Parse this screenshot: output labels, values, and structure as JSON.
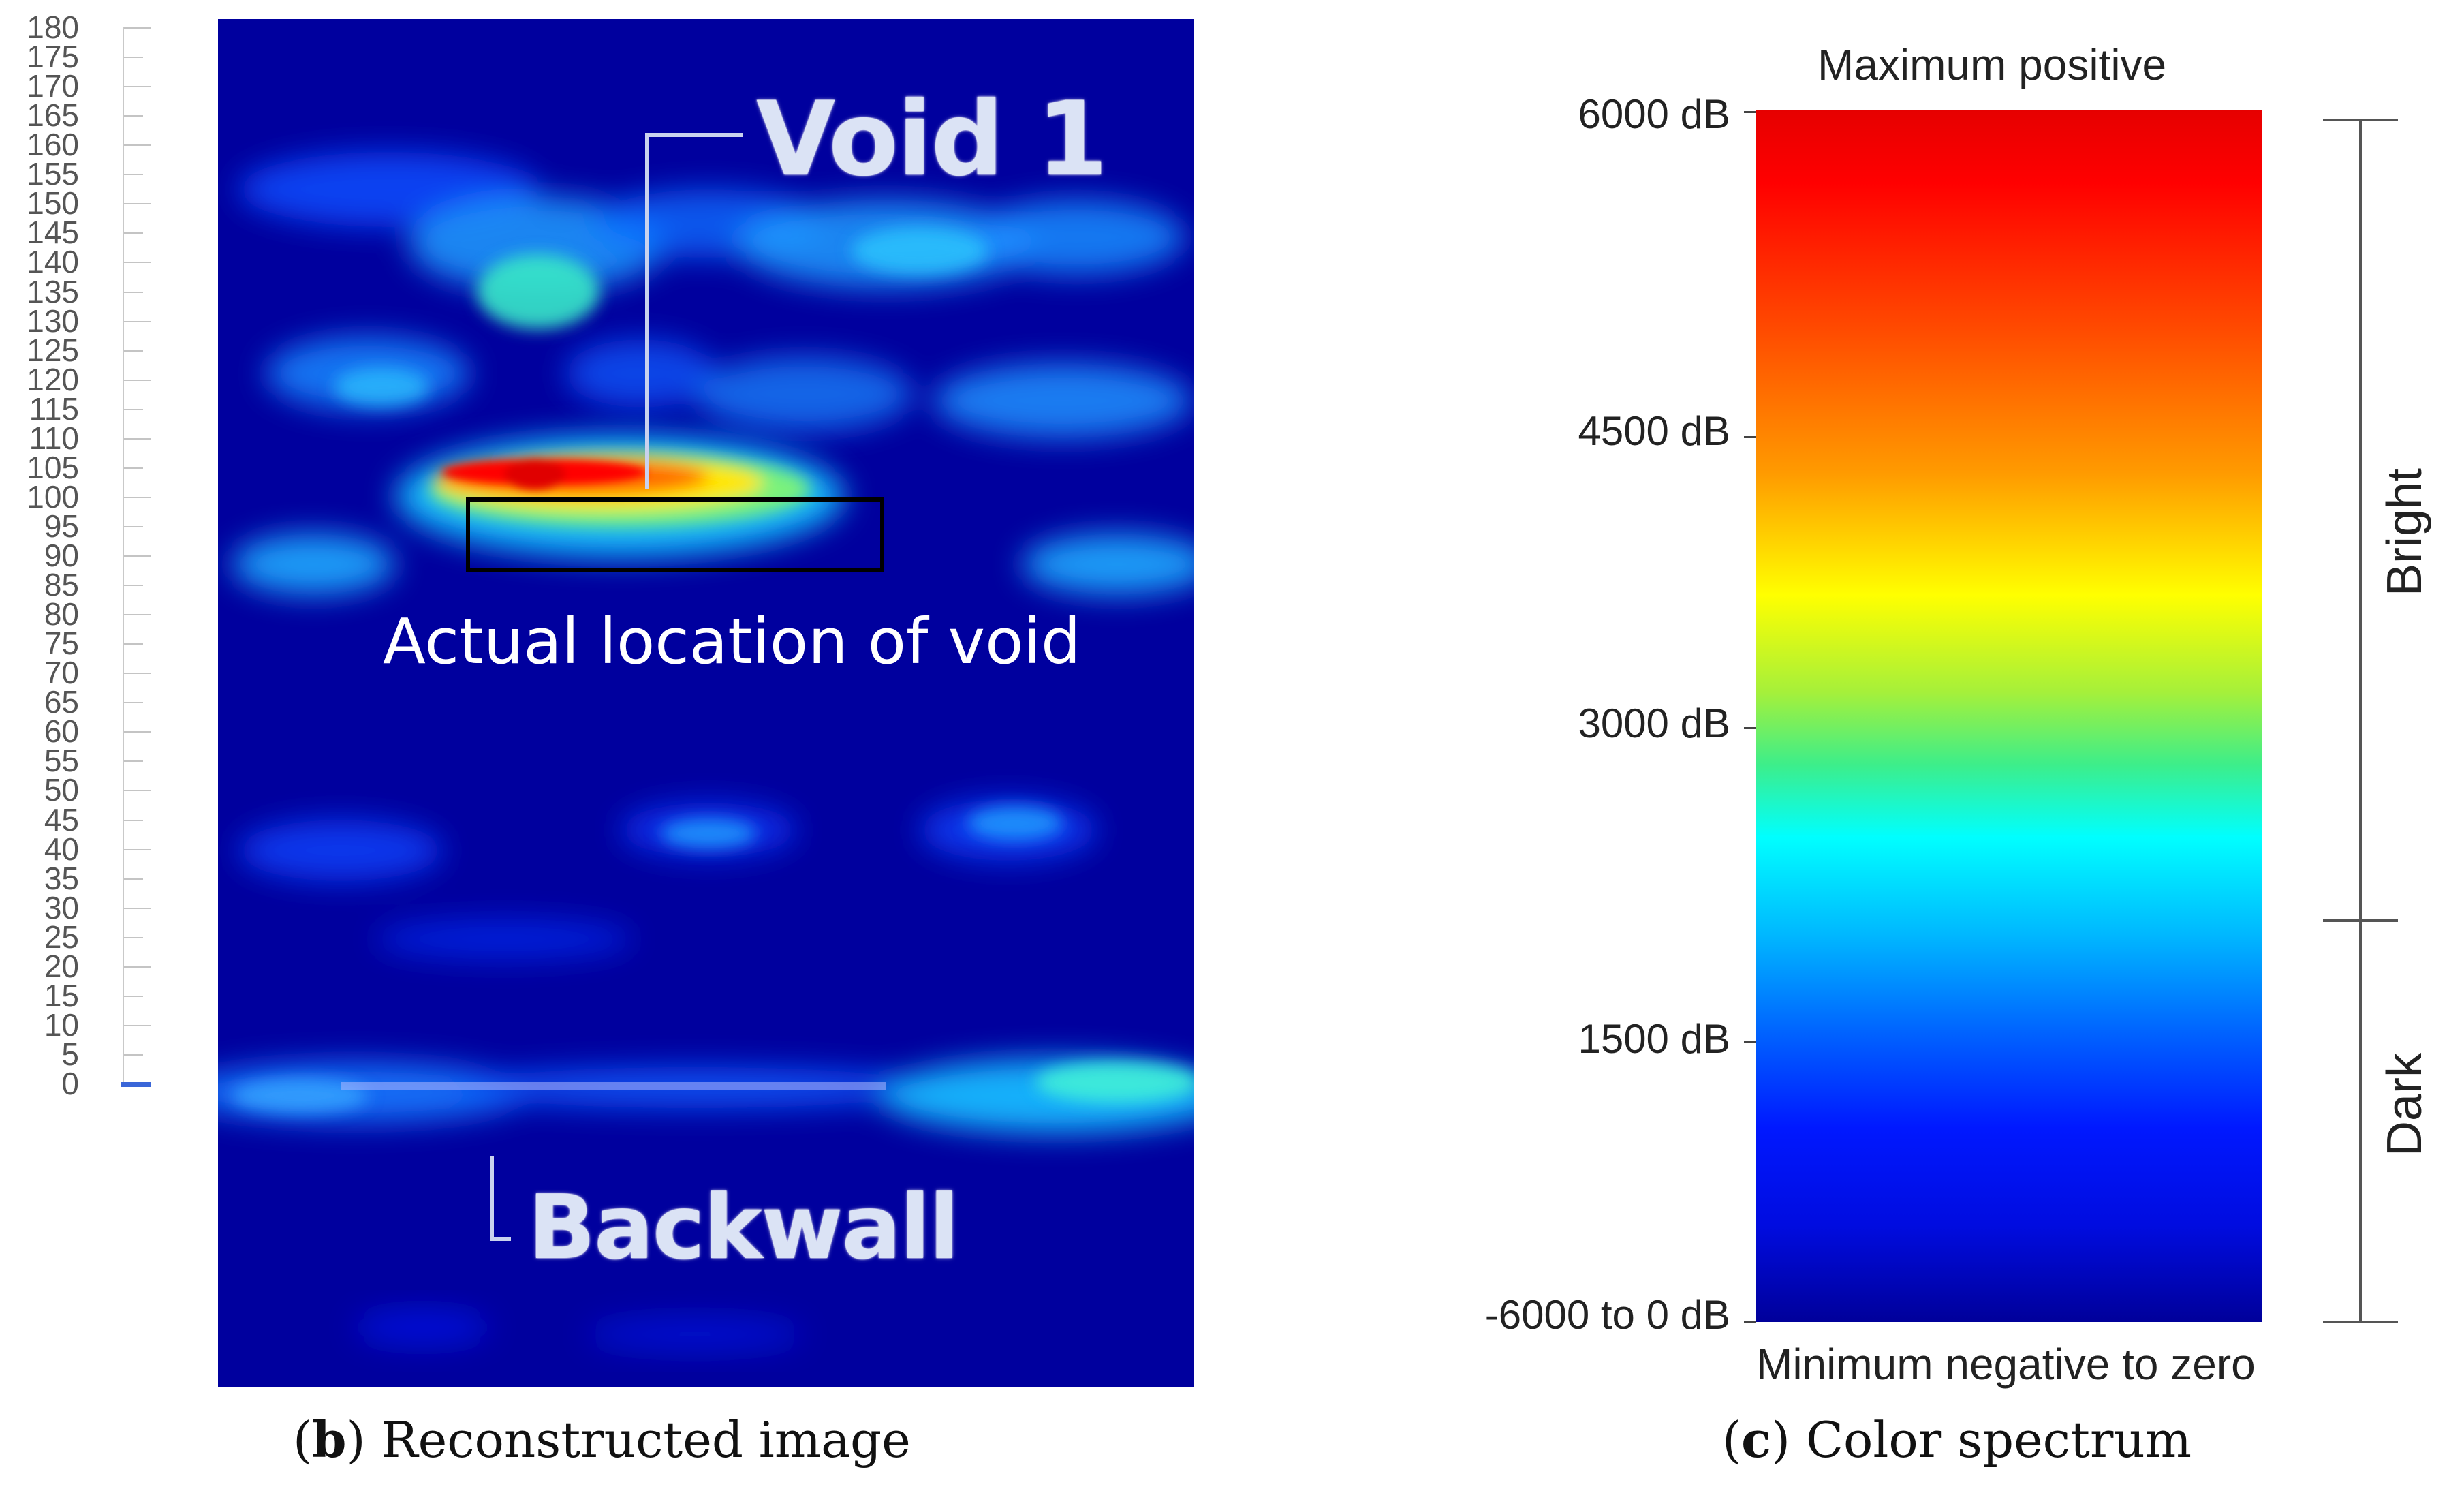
{
  "panel_b": {
    "ruler_ticks": [
      "180",
      "175",
      "170",
      "165",
      "160",
      "155",
      "150",
      "145",
      "140",
      "135",
      "130",
      "125",
      "120",
      "115",
      "110",
      "105",
      "100",
      "95",
      "90",
      "85",
      "80",
      "75",
      "70",
      "65",
      "60",
      "55",
      "50",
      "45",
      "40",
      "35",
      "30",
      "25",
      "20",
      "15",
      "10",
      "5",
      "0"
    ],
    "void_label": "Void 1",
    "actual_location_label": "Actual location of void",
    "backwall_label": "Backwall",
    "caption_letter": "b",
    "caption_text": ") Reconstructed image",
    "caption_open": "("
  },
  "panel_c": {
    "top_label": "Maximum positive",
    "bottom_label": "Minimum negative to zero",
    "db_labels": [
      "6000 dB",
      "4500 dB",
      "3000 dB",
      "1500 dB",
      "-6000 to 0 dB"
    ],
    "bright_label": "Bright",
    "dark_label": "Dark",
    "caption_open": "(",
    "caption_letter": "c",
    "caption_text": ") Color spectrum"
  },
  "colors": {
    "scan_background": "#00009e",
    "scan_hot": "#ff0000",
    "scan_glow": "#00c8ff"
  }
}
